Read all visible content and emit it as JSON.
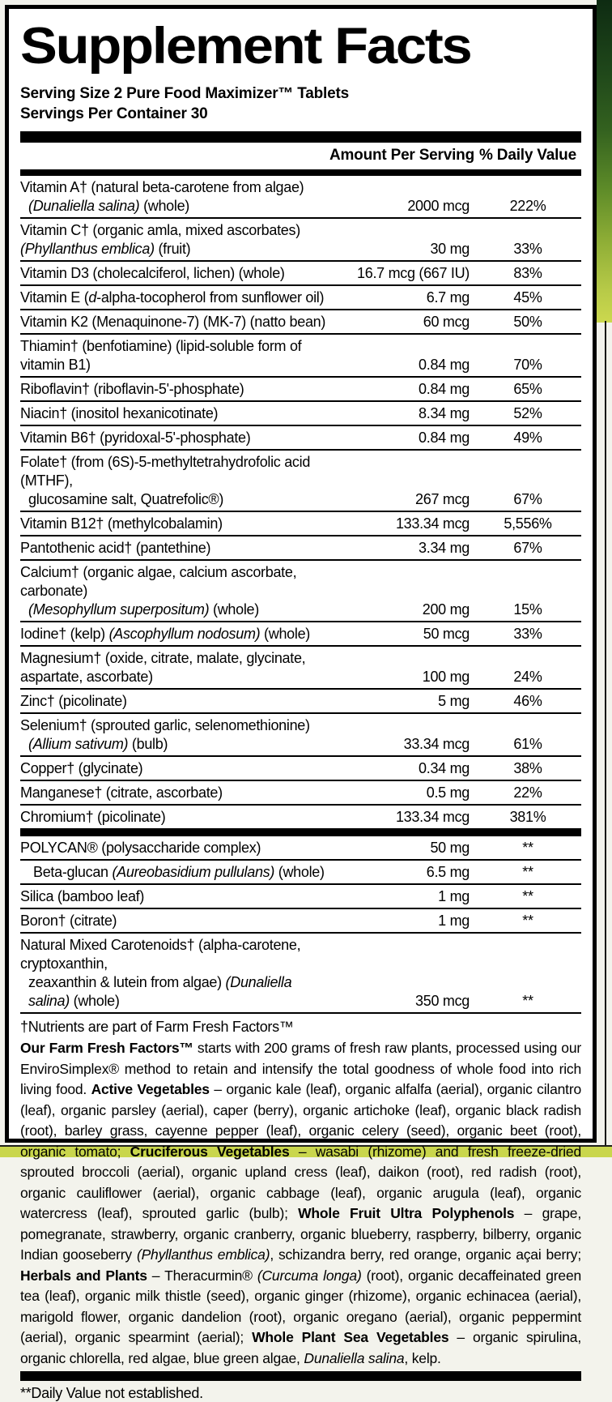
{
  "label": {
    "title": "Supplement Facts",
    "serving_size": "Serving Size 2 Pure Food Maximizer™ Tablets",
    "servings_per_container": "Servings Per Container 30",
    "columns": {
      "amount": "Amount Per Serving",
      "daily_value": "% Daily Value"
    },
    "rows": [
      {
        "lines": [
          [
            {
              "t": "Vitamin A† (natural beta-carotene from algae)"
            }
          ],
          [
            {
              "t": "(Dunaliella salina)",
              "i": true
            },
            {
              "t": " (whole)"
            }
          ]
        ],
        "amount": "2000 mcg",
        "dv": "222%"
      },
      {
        "lines": [
          [
            {
              "t": "Vitamin C† (organic amla, mixed ascorbates) "
            },
            {
              "t": "(Phyllanthus emblica)",
              "i": true
            },
            {
              "t": " (fruit)"
            }
          ]
        ],
        "amount": "30 mg",
        "dv": "33%"
      },
      {
        "lines": [
          [
            {
              "t": "Vitamin D3 (cholecalciferol, lichen) (whole)"
            }
          ]
        ],
        "amount": "16.7 mcg (667 IU)",
        "dv": "83%"
      },
      {
        "lines": [
          [
            {
              "t": "Vitamin E ("
            },
            {
              "t": "d",
              "i": true
            },
            {
              "t": "-alpha-tocopherol from sunflower oil)"
            }
          ]
        ],
        "amount": "6.7 mg",
        "dv": "45%"
      },
      {
        "lines": [
          [
            {
              "t": "Vitamin K2 (Menaquinone-7) (MK-7) (natto bean)"
            }
          ]
        ],
        "amount": "60 mcg",
        "dv": "50%"
      },
      {
        "lines": [
          [
            {
              "t": "Thiamin† (benfotiamine) (lipid-soluble form of vitamin B1)"
            }
          ]
        ],
        "amount": "0.84 mg",
        "dv": "70%"
      },
      {
        "lines": [
          [
            {
              "t": "Riboflavin† (riboflavin-5'-phosphate)"
            }
          ]
        ],
        "amount": "0.84 mg",
        "dv": "65%"
      },
      {
        "lines": [
          [
            {
              "t": "Niacin† (inositol hexanicotinate)"
            }
          ]
        ],
        "amount": "8.34 mg",
        "dv": "52%"
      },
      {
        "lines": [
          [
            {
              "t": "Vitamin B6† (pyridoxal-5'-phosphate)"
            }
          ]
        ],
        "amount": "0.84 mg",
        "dv": "49%"
      },
      {
        "lines": [
          [
            {
              "t": "Folate† (from (6S)-5-methyltetrahydrofolic acid (MTHF),"
            }
          ],
          [
            {
              "t": "glucosamine salt, Quatrefolic®)"
            }
          ]
        ],
        "amount": "267 mcg",
        "dv": "67%"
      },
      {
        "lines": [
          [
            {
              "t": "Vitamin B12† (methylcobalamin)"
            }
          ]
        ],
        "amount": "133.34 mcg",
        "dv": "5,556%"
      },
      {
        "lines": [
          [
            {
              "t": "Pantothenic acid† (pantethine)"
            }
          ]
        ],
        "amount": "3.34 mg",
        "dv": "67%"
      },
      {
        "lines": [
          [
            {
              "t": "Calcium† (organic algae, calcium ascorbate, carbonate)"
            }
          ],
          [
            {
              "t": "(Mesophyllum superpositum)",
              "i": true
            },
            {
              "t": " (whole)"
            }
          ]
        ],
        "amount": "200 mg",
        "dv": "15%"
      },
      {
        "lines": [
          [
            {
              "t": "Iodine† (kelp) "
            },
            {
              "t": "(Ascophyllum nodosum)",
              "i": true
            },
            {
              "t": " (whole)"
            }
          ]
        ],
        "amount": "50 mcg",
        "dv": "33%"
      },
      {
        "lines": [
          [
            {
              "t": "Magnesium† (oxide, citrate, malate, glycinate, aspartate, ascorbate)"
            }
          ]
        ],
        "amount": "100 mg",
        "dv": "24%"
      },
      {
        "lines": [
          [
            {
              "t": "Zinc† (picolinate)"
            }
          ]
        ],
        "amount": "5 mg",
        "dv": "46%"
      },
      {
        "lines": [
          [
            {
              "t": "Selenium† (sprouted garlic, selenomethionine)"
            }
          ],
          [
            {
              "t": "(Allium sativum)",
              "i": true
            },
            {
              "t": " (bulb)"
            }
          ]
        ],
        "amount": "33.34 mcg",
        "dv": "61%"
      },
      {
        "lines": [
          [
            {
              "t": "Copper† (glycinate)"
            }
          ]
        ],
        "amount": "0.34 mg",
        "dv": "38%"
      },
      {
        "lines": [
          [
            {
              "t": "Manganese† (citrate, ascorbate)"
            }
          ]
        ],
        "amount": "0.5 mg",
        "dv": "22%"
      },
      {
        "lines": [
          [
            {
              "t": "Chromium† (picolinate)"
            }
          ]
        ],
        "amount": "133.34 mcg",
        "dv": "381%",
        "no_border": true
      },
      {
        "lines": [
          [
            {
              "t": "POLYCAN® (polysaccharide complex)"
            }
          ]
        ],
        "amount": "50 mg",
        "dv": "**",
        "bar_before": true
      },
      {
        "lines": [
          [
            {
              "t": "Beta-glucan "
            },
            {
              "t": "(Aureobasidium pullulans)",
              "i": true
            },
            {
              "t": " (whole)"
            }
          ]
        ],
        "amount": "6.5 mg",
        "dv": "**",
        "indent": true
      },
      {
        "lines": [
          [
            {
              "t": "Silica (bamboo leaf)"
            }
          ]
        ],
        "amount": "1 mg",
        "dv": "**"
      },
      {
        "lines": [
          [
            {
              "t": "Boron† (citrate)"
            }
          ]
        ],
        "amount": "1 mg",
        "dv": "**"
      },
      {
        "lines": [
          [
            {
              "t": "Natural Mixed Carotenoids† (alpha-carotene, cryptoxanthin,"
            }
          ],
          [
            {
              "t": "zeaxanthin & lutein from algae) "
            },
            {
              "t": "(Dunaliella salina)",
              "i": true
            },
            {
              "t": " (whole)"
            }
          ]
        ],
        "amount": "350 mcg",
        "dv": "**"
      }
    ],
    "footnote_dagger": "†Nutrients are part of Farm Fresh Factors™",
    "description_segments": [
      {
        "t": "Our Farm Fresh Factors™",
        "b": true
      },
      {
        "t": " starts with 200 grams of fresh raw plants, processed using our EnviroSimplex® method to retain and intensify the total goodness of whole food into rich living food. "
      },
      {
        "t": "Active Vegetables",
        "b": true
      },
      {
        "t": " – organic kale (leaf), organic alfalfa (aerial), organic cilantro (leaf), organic parsley (aerial), caper (berry), organic artichoke (leaf), organic black radish (root), barley grass, cayenne pepper (leaf), organic celery (seed), organic beet (root), organic tomato; "
      },
      {
        "t": "Cruciferous Vegetables",
        "b": true
      },
      {
        "t": " – wasabi (rhizome) and fresh freeze-dried sprouted broccoli (aerial), organic upland cress (leaf), daikon (root), red radish (root), organic cauliflower (aerial), organic cabbage (leaf), organic arugula (leaf), organic watercress (leaf), sprouted garlic (bulb); "
      },
      {
        "t": "Whole Fruit Ultra Polyphenols",
        "b": true
      },
      {
        "t": " – grape, pomegranate, strawberry, organic cranberry, organic blueberry, raspberry, bilberry, organic Indian gooseberry "
      },
      {
        "t": "(Phyllanthus emblica)",
        "i": true
      },
      {
        "t": ", schizandra berry, red orange, organic açai berry; "
      },
      {
        "t": "Herbals and Plants",
        "b": true
      },
      {
        "t": " – Theracurmin® "
      },
      {
        "t": "(Curcuma longa)",
        "i": true
      },
      {
        "t": " (root), organic decaffeinated green tea (leaf), organic milk thistle (seed), organic ginger (rhizome), organic echinacea (aerial), marigold flower, organic dandelion (root), organic oregano (aerial), organic peppermint (aerial), organic spearmint (aerial); "
      },
      {
        "t": "Whole Plant Sea Vegetables",
        "b": true
      },
      {
        "t": " – organic spirulina, organic chlorella, red algae, blue green algae, "
      },
      {
        "t": "Dunaliella salina",
        "i": true
      },
      {
        "t": ", kelp."
      }
    ],
    "footnote_dv": "**Daily Value not established."
  },
  "colors": {
    "paper": "#ffffff",
    "ink": "#000000",
    "accent_strip": "#c9d64c",
    "photo_edge_top": "#0e2b12",
    "photo_edge_bottom": "#ccd84e"
  }
}
